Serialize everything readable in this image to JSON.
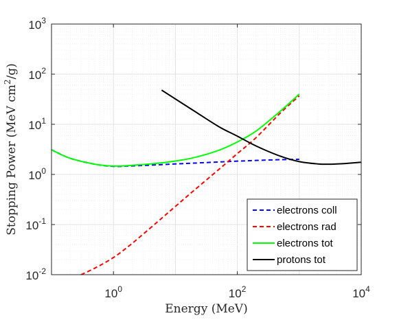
{
  "chart_data": {
    "type": "line",
    "xlabel": "Energy (MeV)",
    "ylabel": "Stopping Power (MeV cm",
    "ylabel_sup": "2",
    "ylabel_tail": "/g)",
    "xscale": "log",
    "yscale": "log",
    "xlim": [
      0.1,
      10000
    ],
    "ylim": [
      0.01,
      1000
    ],
    "grid": true,
    "legend_position": "bottom-right",
    "x_ticks": [
      {
        "base": "10",
        "exp": "0"
      },
      {
        "base": "10",
        "exp": "2"
      },
      {
        "base": "10",
        "exp": "4"
      }
    ],
    "x_tick_values": [
      1,
      100,
      10000
    ],
    "y_ticks": [
      {
        "base": "10",
        "exp": "-2"
      },
      {
        "base": "10",
        "exp": "-1"
      },
      {
        "base": "10",
        "exp": "0"
      },
      {
        "base": "10",
        "exp": "1"
      },
      {
        "base": "10",
        "exp": "2"
      },
      {
        "base": "10",
        "exp": "3"
      }
    ],
    "y_tick_values": [
      0.01,
      0.1,
      1,
      10,
      100,
      1000
    ],
    "series": [
      {
        "name": "electrons coll",
        "color": "#0000ff",
        "dash": "dashed",
        "x": [
          0.1,
          0.2,
          0.5,
          1,
          2,
          5,
          10,
          20,
          50,
          100,
          200,
          500,
          1000
        ],
        "y": [
          3.1,
          2.1,
          1.6,
          1.45,
          1.48,
          1.55,
          1.62,
          1.68,
          1.77,
          1.84,
          1.9,
          1.97,
          2.0
        ]
      },
      {
        "name": "electrons rad",
        "color": "#ff0000",
        "dash": "dashed",
        "x": [
          0.3,
          0.5,
          1,
          2,
          5,
          10,
          20,
          50,
          100,
          200,
          500,
          1000
        ],
        "y": [
          0.01,
          0.0135,
          0.022,
          0.042,
          0.11,
          0.23,
          0.48,
          1.25,
          2.6,
          5.4,
          17,
          37
        ]
      },
      {
        "name": "electrons tot",
        "color": "#00ff00",
        "dash": "solid",
        "x": [
          0.1,
          0.2,
          0.5,
          1,
          2,
          5,
          10,
          20,
          50,
          100,
          200,
          500,
          1000
        ],
        "y": [
          3.1,
          2.1,
          1.6,
          1.47,
          1.52,
          1.66,
          1.85,
          2.16,
          3.02,
          4.44,
          7.3,
          18.5,
          40
        ]
      },
      {
        "name": "protons tot",
        "color": "#000000",
        "dash": "solid",
        "x": [
          6,
          10,
          20,
          50,
          100,
          200,
          500,
          1000,
          2000,
          3000,
          5000,
          10000
        ],
        "y": [
          48,
          32,
          18.5,
          9,
          5.8,
          3.7,
          2.3,
          1.8,
          1.62,
          1.6,
          1.64,
          1.75
        ]
      }
    ]
  }
}
